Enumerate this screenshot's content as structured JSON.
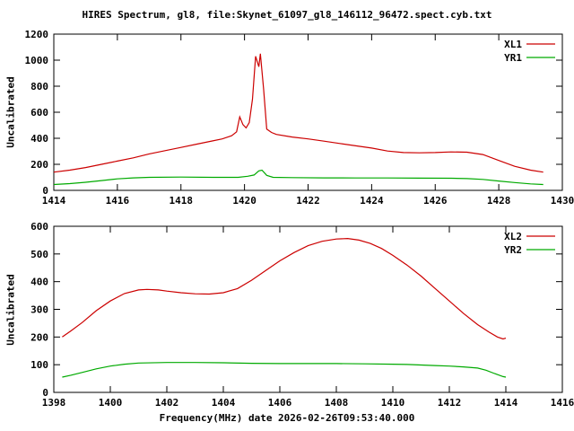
{
  "chart_data": [
    {
      "type": "line",
      "title": "HIRES Spectrum, gl8, file:Skynet_61097_gl8_146112_96472.spect.cyb.txt",
      "xlabel": "",
      "ylabel": "Uncalibrated",
      "xlim": [
        1414,
        1430
      ],
      "ylim": [
        0,
        1200
      ],
      "xticks": [
        1414,
        1416,
        1418,
        1420,
        1422,
        1424,
        1426,
        1428,
        1430
      ],
      "yticks": [
        0,
        200,
        400,
        600,
        800,
        1000,
        1200
      ],
      "grid": false,
      "legend_position": "top-right",
      "series": [
        {
          "name": "XL1",
          "color": "#cc0000",
          "x": [
            1414.0,
            1414.5,
            1415.0,
            1415.5,
            1416.0,
            1416.5,
            1417.0,
            1417.5,
            1418.0,
            1418.5,
            1419.0,
            1419.3,
            1419.6,
            1419.75,
            1419.85,
            1419.95,
            1420.05,
            1420.15,
            1420.25,
            1420.35,
            1420.45,
            1420.5,
            1420.6,
            1420.7,
            1420.85,
            1421.0,
            1421.5,
            1422.0,
            1422.5,
            1423.0,
            1423.5,
            1424.0,
            1424.5,
            1425.0,
            1425.5,
            1426.0,
            1426.5,
            1427.0,
            1427.5,
            1428.0,
            1428.5,
            1429.0,
            1429.4
          ],
          "y": [
            140,
            155,
            175,
            200,
            225,
            250,
            280,
            305,
            330,
            355,
            380,
            395,
            420,
            450,
            565,
            505,
            480,
            520,
            700,
            1030,
            950,
            1050,
            780,
            470,
            445,
            430,
            410,
            395,
            378,
            360,
            342,
            325,
            302,
            290,
            288,
            290,
            295,
            293,
            275,
            230,
            185,
            155,
            140
          ]
        },
        {
          "name": "YR1",
          "color": "#00aa00",
          "x": [
            1414.0,
            1414.5,
            1415.0,
            1415.5,
            1416.0,
            1416.5,
            1417.0,
            1418.0,
            1419.0,
            1419.8,
            1420.1,
            1420.3,
            1420.45,
            1420.55,
            1420.7,
            1420.9,
            1421.5,
            1422.5,
            1423.5,
            1424.5,
            1425.5,
            1426.5,
            1427.0,
            1427.5,
            1428.0,
            1428.5,
            1429.0,
            1429.4
          ],
          "y": [
            45,
            52,
            62,
            75,
            88,
            96,
            100,
            102,
            100,
            100,
            108,
            118,
            150,
            155,
            115,
            100,
            98,
            96,
            95,
            95,
            94,
            93,
            90,
            84,
            72,
            60,
            50,
            45
          ]
        }
      ]
    },
    {
      "type": "line",
      "title": "",
      "xlabel": "Frequency(MHz) date 2026-02-26T09:53:40.000",
      "ylabel": "Uncalibrated",
      "xlim": [
        1398,
        1416
      ],
      "ylim": [
        0,
        600
      ],
      "xticks": [
        1398,
        1400,
        1402,
        1404,
        1406,
        1408,
        1410,
        1412,
        1414,
        1416
      ],
      "yticks": [
        0,
        100,
        200,
        300,
        400,
        500,
        600
      ],
      "grid": false,
      "legend_position": "top-right",
      "series": [
        {
          "name": "XL2",
          "color": "#cc0000",
          "x": [
            1398.3,
            1398.6,
            1399.0,
            1399.5,
            1400.0,
            1400.5,
            1401.0,
            1401.3,
            1401.7,
            1402.0,
            1402.5,
            1403.0,
            1403.5,
            1404.0,
            1404.5,
            1405.0,
            1405.5,
            1406.0,
            1406.5,
            1407.0,
            1407.5,
            1408.0,
            1408.4,
            1408.8,
            1409.2,
            1409.6,
            1410.0,
            1410.5,
            1411.0,
            1411.5,
            1412.0,
            1412.5,
            1413.0,
            1413.4,
            1413.7,
            1413.9,
            1414.0
          ],
          "y": [
            200,
            222,
            252,
            295,
            330,
            357,
            370,
            372,
            370,
            366,
            360,
            356,
            355,
            360,
            375,
            405,
            440,
            475,
            505,
            530,
            546,
            554,
            556,
            550,
            538,
            520,
            495,
            460,
            420,
            375,
            330,
            285,
            245,
            218,
            200,
            193,
            196
          ]
        },
        {
          "name": "YR2",
          "color": "#00aa00",
          "x": [
            1398.3,
            1398.6,
            1399.0,
            1399.5,
            1400.0,
            1400.5,
            1401.0,
            1402.0,
            1403.0,
            1404.0,
            1405.0,
            1406.0,
            1407.0,
            1408.0,
            1409.0,
            1410.0,
            1410.5,
            1411.0,
            1411.5,
            1412.0,
            1412.5,
            1413.0,
            1413.3,
            1413.6,
            1413.9,
            1414.0
          ],
          "y": [
            55,
            62,
            72,
            85,
            95,
            102,
            106,
            108,
            108,
            107,
            105,
            104,
            104,
            104,
            103,
            102,
            101,
            99,
            97,
            95,
            92,
            88,
            80,
            68,
            57,
            55
          ]
        }
      ]
    }
  ]
}
